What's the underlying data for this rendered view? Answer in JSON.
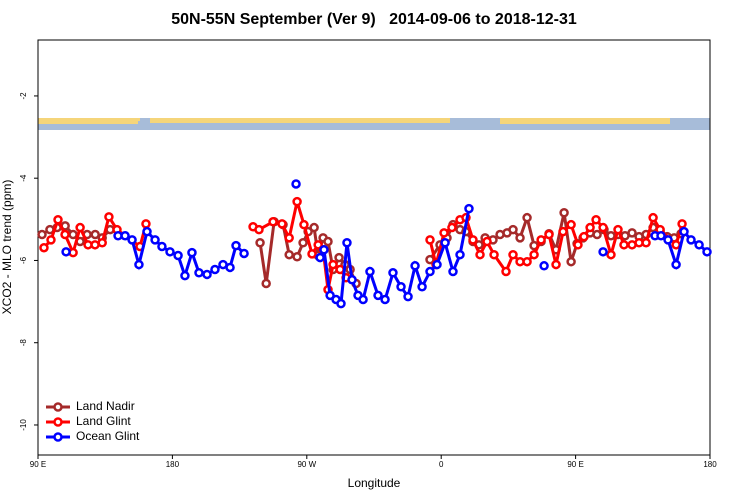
{
  "chart_data": {
    "type": "line",
    "title": "50N-55N September (Ver 9)   2014-09-06 to 2018-12-31",
    "x_label": "Longitude",
    "y_label": "XCO2 - MLO trend (ppm)",
    "xlim": [
      90,
      540
    ],
    "ylim": [
      -10.73,
      -0.64
    ],
    "xticks": [
      {
        "value": 90,
        "label": "90 E"
      },
      180,
      {
        "value": 270,
        "label": "90 W"
      },
      {
        "value": 360,
        "label": "0"
      },
      {
        "value": 450,
        "label": "90 E"
      },
      {
        "value": 540,
        "label": "180"
      }
    ],
    "yticks": [
      -10,
      -8,
      -6,
      -4,
      -2
    ],
    "legend": "bottom-left",
    "series": [
      {
        "name": "Land Nadir",
        "color": "#a52a2a",
        "x": [
          92.7,
          98,
          102.8,
          108.2,
          113.5,
          118.2,
          122.9,
          128.3,
          133,
          138.3,
          null,
          238.7,
          242.8,
          248.1,
          254.1,
          258.2,
          263.5,
          267.5,
          270.9,
          274.9,
          277.6,
          280.9,
          284.2,
          287.6,
          291.6,
          295.6,
          299,
          303,
          null,
          352.5,
          359.2,
          363.9,
          367.9,
          372.6,
          376.6,
          381.3,
          385.3,
          389.4,
          394.7,
          399.4,
          404.1,
          408.1,
          412.8,
          417.5,
          422.2,
          426.9,
          432.2,
          436.9,
          442.3,
          447,
          451,
          455,
          459.7,
          464.4,
          469,
          473.7,
          478.4,
          483.1,
          487.8,
          492.5,
          497.2,
          501.9,
          506.6,
          511.3,
          516,
          520.6
        ],
        "values": [
          -5.37,
          -5.25,
          -5.2,
          -5.16,
          -5.37,
          -5.54,
          -5.37,
          -5.37,
          -5.45,
          -5.25,
          null,
          -5.57,
          -6.56,
          -5.06,
          -5.13,
          -5.86,
          -5.91,
          -5.57,
          -5.3,
          -5.2,
          -5.88,
          -5.45,
          -5.54,
          -6.22,
          -5.93,
          -6.1,
          -6.22,
          -6.56,
          null,
          -5.98,
          -5.62,
          -5.45,
          -5.13,
          -5.25,
          -5.3,
          -5.54,
          -5.62,
          -5.45,
          -5.5,
          -5.37,
          -5.33,
          -5.25,
          -5.45,
          -4.96,
          -5.64,
          -5.54,
          -5.35,
          -5.74,
          -4.84,
          -6.03,
          -5.59,
          -5.45,
          -5.33,
          -5.37,
          -5.25,
          -5.4,
          -5.37,
          -5.4,
          -5.33,
          -5.42,
          -5.37,
          -5.2,
          -5.3,
          -5.42,
          -5.45,
          -5.35
        ]
      },
      {
        "name": "Land Glint",
        "color": "#ff0000",
        "x": [
          94,
          98.7,
          103.4,
          108.1,
          113.5,
          118.2,
          123.5,
          128.2,
          133,
          137.5,
          142.9,
          158.3,
          162.3,
          null,
          234,
          238,
          247.4,
          253.4,
          258.2,
          263.5,
          268.1,
          273.5,
          277.6,
          280.9,
          284.2,
          287.6,
          292.3,
          296.3,
          null,
          352.5,
          356.5,
          361.9,
          367.2,
          372.6,
          376.6,
          381.3,
          386,
          390.7,
          395.4,
          403.4,
          408.1,
          412.8,
          417.5,
          422.2,
          426.9,
          432.2,
          436.9,
          441.6,
          447,
          451.6,
          455.6,
          459.7,
          463.7,
          468.4,
          473.7,
          478.4,
          482.4,
          487.8,
          492.5,
          497.2,
          501.9,
          506.6,
          517.3,
          521.3
        ],
        "values": [
          -5.69,
          -5.5,
          -5.01,
          -5.37,
          -5.81,
          -5.2,
          -5.62,
          -5.62,
          -5.57,
          -4.94,
          -5.25,
          -5.66,
          -5.11,
          null,
          -5.18,
          -5.25,
          -5.06,
          -5.11,
          -5.45,
          -4.57,
          -5.13,
          -5.84,
          -5.62,
          -5.74,
          -6.71,
          -6.1,
          -6.22,
          -6.42,
          null,
          -5.5,
          -6.1,
          -5.33,
          -5.2,
          -5.01,
          -4.96,
          -5.5,
          -5.86,
          -5.54,
          -5.86,
          -6.27,
          -5.86,
          -6.03,
          -6.03,
          -5.86,
          -5.5,
          -5.37,
          -6.1,
          -5.3,
          -5.13,
          -5.62,
          -5.42,
          -5.2,
          -5.01,
          -5.2,
          -5.86,
          -5.25,
          -5.62,
          -5.62,
          -5.57,
          -5.57,
          -4.96,
          -5.25,
          -5.62,
          -5.11
        ]
      },
      {
        "name": "Ocean Glint",
        "color": "#0000ff",
        "x": [
          108.8,
          null,
          143.6,
          148.3,
          153,
          157.6,
          163,
          168.4,
          173,
          178.4,
          183.8,
          188.4,
          193.1,
          197.8,
          203.2,
          208.5,
          213.9,
          218.6,
          222.6,
          228,
          null,
          262.8,
          null,
          278.9,
          281.5,
          285.6,
          289.6,
          292.9,
          296.9,
          300.3,
          304.3,
          307.7,
          312.3,
          317.7,
          322.4,
          327.7,
          333.1,
          337.8,
          342.5,
          347.2,
          352.5,
          357.2,
          362.6,
          367.9,
          372.6,
          378.6,
          null,
          428.9,
          null,
          468.4,
          null,
          503.2,
          507.2,
          511.9,
          517.3,
          522.6,
          527.3,
          532.7,
          538
        ],
        "values": [
          -5.79,
          null,
          -5.4,
          -5.4,
          -5.5,
          -6.1,
          -5.3,
          -5.5,
          -5.66,
          -5.79,
          -5.88,
          -6.37,
          -5.81,
          -6.3,
          -6.34,
          -6.22,
          -6.1,
          -6.17,
          -5.64,
          -5.83,
          null,
          -4.14,
          null,
          -5.93,
          -5.74,
          -6.85,
          -6.95,
          -7.05,
          -5.57,
          -6.47,
          -6.85,
          -6.95,
          -6.27,
          -6.85,
          -6.95,
          -6.3,
          -6.64,
          -6.88,
          -6.13,
          -6.64,
          -6.27,
          -6.1,
          -5.57,
          -6.27,
          -5.86,
          -4.74,
          null,
          -6.13,
          null,
          -5.79,
          null,
          -5.4,
          -5.4,
          -5.5,
          -6.1,
          -5.3,
          -5.5,
          -5.62,
          -5.79
        ]
      }
    ]
  }
}
